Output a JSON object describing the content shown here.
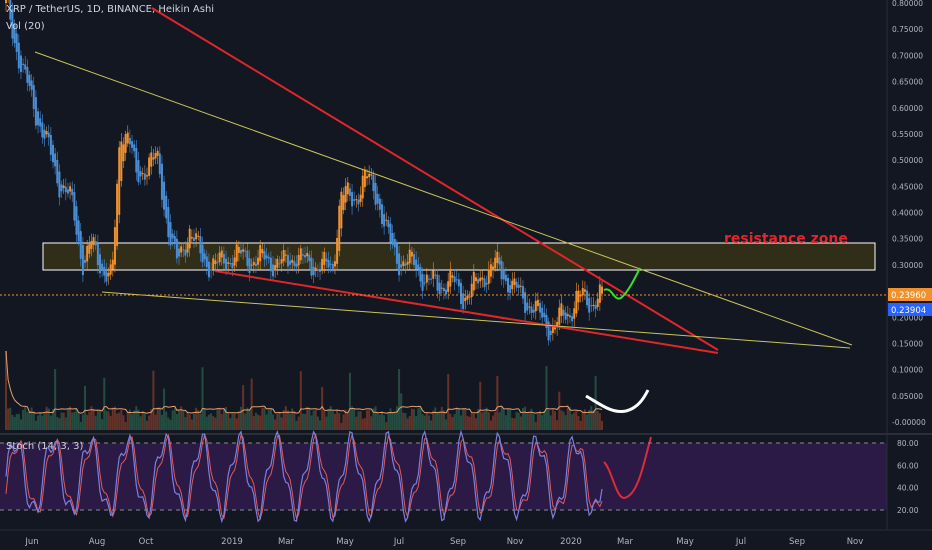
{
  "header": {
    "symbol": "XRP / TetherUS, 1D, BINANCE, Heikin Ashi",
    "volume_label": "Vol (20)",
    "stoch_label": "Stoch (14, 3, 3)"
  },
  "annotations": {
    "resistance_label": "resistance zone"
  },
  "price_badges": {
    "last": "0.23960",
    "other": "0.23904"
  },
  "colors": {
    "background": "#131722",
    "bull": "#f0912e",
    "bear": "#4a8fd6",
    "trendline_red": "#e0262a",
    "trendline_yellow": "#c9c45a",
    "zone_fill": "#3b3616",
    "stoch_band": "#2a1a45",
    "stoch_k": "#7d7fe0",
    "stoch_d": "#e05a5a",
    "projection_green": "#38e02a",
    "projection_red": "#e02a3a"
  },
  "chart_data": [
    {
      "type": "candlestick",
      "title": "XRP / TetherUS, 1D, BINANCE, Heikin Ashi",
      "x_ticks": [
        "Jun",
        "Aug",
        "Oct",
        "2019",
        "Mar",
        "May",
        "Jul",
        "Sep",
        "Nov",
        "2020",
        "Mar",
        "May",
        "Jul",
        "Sep",
        "Nov"
      ],
      "y_ticks": [
        "0.80000",
        "0.75000",
        "0.70000",
        "0.65000",
        "0.60000",
        "0.55000",
        "0.50000",
        "0.45000",
        "0.40000",
        "0.35000",
        "0.30000",
        "0.25000",
        "0.20000",
        "0.15000",
        "0.10000",
        "0.05000",
        "-0.00000"
      ],
      "ylim": [
        0,
        0.8
      ],
      "price_path": [
        [
          0,
          0.8
        ],
        [
          0.02,
          0.67
        ],
        [
          0.035,
          0.6
        ],
        [
          0.05,
          0.53
        ],
        [
          0.065,
          0.46
        ],
        [
          0.08,
          0.42
        ],
        [
          0.095,
          0.3
        ],
        [
          0.105,
          0.34
        ],
        [
          0.12,
          0.29
        ],
        [
          0.13,
          0.27
        ],
        [
          0.14,
          0.56
        ],
        [
          0.15,
          0.55
        ],
        [
          0.16,
          0.46
        ],
        [
          0.175,
          0.5
        ],
        [
          0.185,
          0.5
        ],
        [
          0.2,
          0.36
        ],
        [
          0.21,
          0.3
        ],
        [
          0.225,
          0.37
        ],
        [
          0.24,
          0.31
        ],
        [
          0.26,
          0.3
        ],
        [
          0.28,
          0.32
        ],
        [
          0.3,
          0.31
        ],
        [
          0.32,
          0.31
        ],
        [
          0.34,
          0.3
        ],
        [
          0.355,
          0.32
        ],
        [
          0.37,
          0.3
        ],
        [
          0.385,
          0.3
        ],
        [
          0.4,
          0.29
        ],
        [
          0.41,
          0.44
        ],
        [
          0.425,
          0.42
        ],
        [
          0.44,
          0.47
        ],
        [
          0.455,
          0.43
        ],
        [
          0.47,
          0.34
        ],
        [
          0.48,
          0.31
        ],
        [
          0.5,
          0.3
        ],
        [
          0.515,
          0.27
        ],
        [
          0.53,
          0.26
        ],
        [
          0.545,
          0.27
        ],
        [
          0.56,
          0.24
        ],
        [
          0.575,
          0.26
        ],
        [
          0.59,
          0.29
        ],
        [
          0.6,
          0.3
        ],
        [
          0.615,
          0.27
        ],
        [
          0.63,
          0.24
        ],
        [
          0.645,
          0.22
        ],
        [
          0.66,
          0.19
        ],
        [
          0.67,
          0.18
        ],
        [
          0.68,
          0.2
        ],
        [
          0.69,
          0.21
        ],
        [
          0.7,
          0.24
        ],
        [
          0.715,
          0.23
        ],
        [
          0.73,
          0.24
        ]
      ],
      "last_price": 0.2396,
      "resistance_zone": [
        0.29,
        0.34
      ],
      "trendlines": [
        {
          "color": "red",
          "from": [
            0.163,
            0.8
          ],
          "to": [
            0.765,
            0.135
          ]
        },
        {
          "color": "red",
          "from": [
            0.23,
            0.28
          ],
          "to": [
            0.79,
            0.13
          ]
        },
        {
          "color": "yellow",
          "from": [
            0.035,
            0.71
          ],
          "to": [
            0.92,
            0.145
          ]
        },
        {
          "color": "yellow",
          "from": [
            0.11,
            0.25
          ],
          "to": [
            0.93,
            0.14
          ]
        }
      ]
    },
    {
      "type": "bar",
      "title": "Vol (20)",
      "note": "volume histogram with moving average"
    },
    {
      "type": "line",
      "title": "Stoch (14, 3, 3)",
      "y_ticks": [
        "80.00",
        "60.00",
        "40.00",
        "20.00"
      ],
      "ylim": [
        10,
        90
      ],
      "bands": [
        20,
        80
      ]
    }
  ]
}
